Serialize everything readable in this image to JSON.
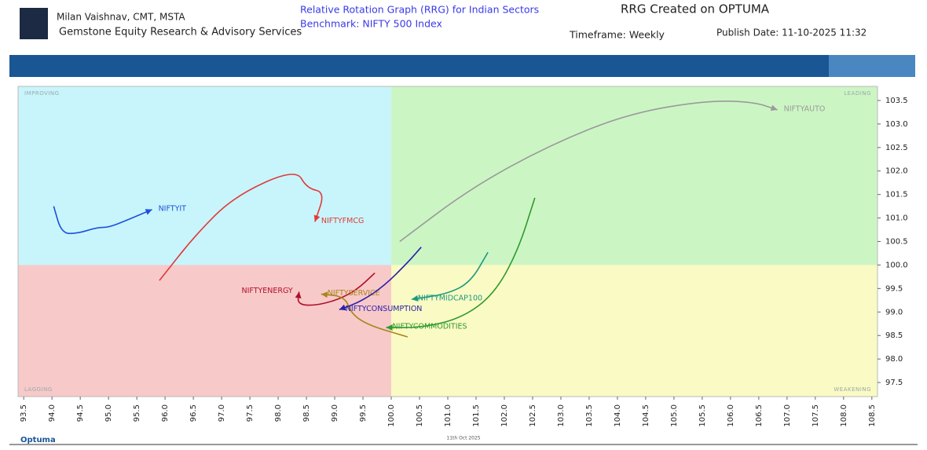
{
  "header": {
    "author": "Milan Vaishnav, CMT, MSTA",
    "company": "Gemstone Equity Research & Advisory Services",
    "title": "Relative Rotation Graph (RRG) for Indian Sectors",
    "benchmark": "Benchmark: NIFTY 500 Index",
    "created": "RRG Created on OPTUMA",
    "timeframe": "Timeframe: Weekly",
    "publish": "Publish Date: 11-10-2025 11:32"
  },
  "footer": {
    "brand": "Optuma",
    "date": "11th Oct 2025"
  },
  "chart_data": {
    "type": "rrg",
    "quadrants": [
      {
        "label": "IMPROVING",
        "color": "#c8f5fb"
      },
      {
        "label": "LEADING",
        "color": "#ccf5c4"
      },
      {
        "label": "LAGGING",
        "color": "#f8c9c9"
      },
      {
        "label": "WEAKENING",
        "color": "#fafac4"
      }
    ],
    "center": [
      100,
      100
    ],
    "xlim": [
      93.4,
      108.6
    ],
    "ylim": [
      97.2,
      103.8
    ],
    "xticks": [
      93.5,
      {
        "value": 94,
        "label": "94.0"
      },
      94.5,
      {
        "value": 95,
        "label": "95.0"
      },
      95.5,
      {
        "value": 96,
        "label": "96.0"
      },
      96.5,
      {
        "value": 97,
        "label": "97.0"
      },
      97.5,
      {
        "value": 98,
        "label": "98.0"
      },
      98.5,
      {
        "value": 99,
        "label": "99.0"
      },
      99.5,
      {
        "value": 100,
        "label": "100.0"
      },
      100.5,
      {
        "value": 101,
        "label": "101.0"
      },
      101.5,
      {
        "value": 102,
        "label": "102.0"
      },
      102.5,
      {
        "value": 103,
        "label": "103.0"
      },
      103.5,
      {
        "value": 104,
        "label": "104.0"
      },
      104.5,
      {
        "value": 105,
        "label": "105.0"
      },
      105.5,
      {
        "value": 106,
        "label": "106.0"
      },
      106.5,
      {
        "value": 107,
        "label": "107.0"
      },
      107.5,
      {
        "value": 108,
        "label": "108.0"
      },
      108.5
    ],
    "yticks": [
      97.5,
      {
        "value": 98,
        "label": "98.0"
      },
      98.5,
      {
        "value": 99,
        "label": "99.0"
      },
      99.5,
      {
        "value": 100,
        "label": "100.0"
      },
      100.5,
      {
        "value": 101,
        "label": "101.0"
      },
      101.5,
      {
        "value": 102,
        "label": "102.0"
      },
      102.5,
      {
        "value": 103,
        "label": "103.0"
      },
      103.5
    ],
    "series": [
      {
        "name": "NIFTYIT",
        "color": "#1f4fe0",
        "x": [
          94.03,
          94.17,
          94.45,
          94.8,
          95.0,
          95.28,
          95.77
        ],
        "values": [
          101.25,
          100.67,
          100.67,
          100.8,
          100.8,
          100.93,
          101.18
        ]
      },
      {
        "name": "NIFTYFMCG",
        "color": "#e03a3a",
        "x": [
          95.9,
          96.53,
          97.23,
          98.31,
          98.51,
          98.83,
          98.65
        ],
        "values": [
          99.67,
          100.63,
          101.47,
          102.05,
          101.63,
          101.55,
          100.92
        ]
      },
      {
        "name": "NIFTYAUTO",
        "color": "#9a9a9a",
        "x": [
          100.15,
          101.4,
          102.8,
          104.19,
          105.58,
          106.41,
          106.83
        ],
        "values": [
          100.5,
          101.63,
          102.55,
          103.22,
          103.5,
          103.47,
          103.3
        ]
      },
      {
        "name": "NIFTYENERGY",
        "color": "#b0102a",
        "x": [
          99.71,
          99.39,
          99.04,
          98.62,
          98.34,
          98.37
        ],
        "values": [
          99.83,
          99.47,
          99.25,
          99.13,
          99.17,
          99.43
        ]
      },
      {
        "name": "NIFTYSERVICE",
        "color": "#a8861a",
        "x": [
          100.29,
          99.59,
          99.29,
          99.18,
          98.76
        ],
        "values": [
          98.47,
          98.72,
          98.97,
          99.33,
          99.38
        ]
      },
      {
        "name": "NIFTYCONSUMPTION",
        "color": "#2a20a8",
        "x": [
          100.53,
          100.29,
          99.87,
          99.46,
          99.08
        ],
        "values": [
          100.38,
          100.05,
          99.55,
          99.22,
          99.05
        ]
      },
      {
        "name": "NIFTYMIDCAP100",
        "color": "#1a9a80",
        "x": [
          101.71,
          101.4,
          100.98,
          100.36
        ],
        "values": [
          100.27,
          99.63,
          99.38,
          99.27
        ]
      },
      {
        "name": "NIFTYCOMMODITIES",
        "color": "#2e9a2e",
        "x": [
          102.54,
          102.24,
          101.82,
          101.26,
          100.57,
          99.91
        ],
        "values": [
          101.43,
          100.3,
          99.38,
          98.88,
          98.67,
          98.67
        ]
      }
    ]
  }
}
